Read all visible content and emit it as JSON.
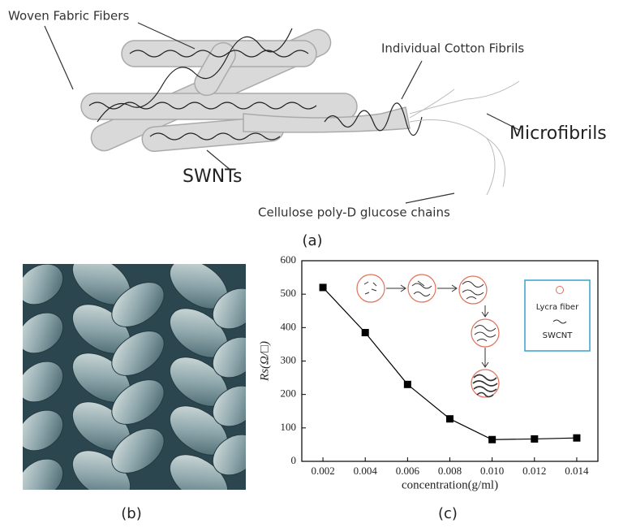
{
  "diagram": {
    "labels": [
      "Woven Fabric Fibers",
      "Individual Cotton Fibrils",
      "Microfibrils",
      "SWNTs",
      "Cellulose poly-D glucose chains"
    ],
    "caption": "(a)"
  },
  "photo": {
    "caption": "(b)"
  },
  "chart_data": {
    "type": "line",
    "caption": "(c)",
    "xlabel": "concentration(g/ml)",
    "ylabel": "Rs(Ω/□)",
    "x": [
      0.002,
      0.004,
      0.006,
      0.008,
      0.01,
      0.012,
      0.014
    ],
    "series": [
      {
        "name": "Rs",
        "color": "#000000",
        "values": [
          520,
          385,
          230,
          127,
          65,
          67,
          70
        ]
      }
    ],
    "xlim": [
      0.001,
      0.015
    ],
    "ylim": [
      0,
      600
    ],
    "xticks": [
      0.002,
      0.004,
      0.006,
      0.008,
      {
        "value": 0.01,
        "label": "0.010"
      },
      0.012,
      0.014
    ],
    "yticks": [
      0,
      100,
      200,
      300,
      400,
      500,
      600
    ],
    "inset_legend": [
      "Lycra fiber",
      "SWCNT"
    ]
  }
}
